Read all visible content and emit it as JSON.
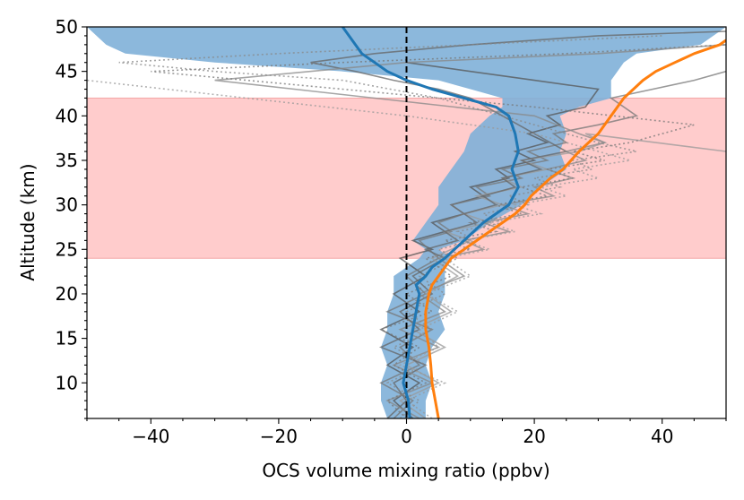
{
  "chart_data": {
    "type": "line",
    "title": "",
    "xlabel": "OCS volume mixing ratio (ppbv)",
    "ylabel": "Altitude (km)",
    "xlim": [
      -50,
      50
    ],
    "ylim": [
      6,
      50
    ],
    "xticks": [
      -40,
      -20,
      0,
      20,
      40
    ],
    "xtick_labels": [
      "−40",
      "−20",
      "0",
      "20",
      "40"
    ],
    "yticks": [
      10,
      15,
      20,
      25,
      30,
      35,
      40,
      45,
      50
    ],
    "ytick_labels": [
      "10",
      "15",
      "20",
      "25",
      "30",
      "35",
      "40",
      "45",
      "50"
    ],
    "shaded_altitude_band": {
      "y_from": 24,
      "y_to": 42,
      "color": "#ffcccc"
    },
    "zero_reference_line": {
      "x": 0,
      "style": "dashed",
      "color": "#000000"
    },
    "blue_envelope": {
      "color": "#7fb0d8",
      "x_low": [
        -3,
        -4,
        -4,
        -3,
        -4,
        -3,
        -3,
        -2,
        -2,
        0,
        2,
        3,
        1,
        3,
        5,
        5,
        7,
        9,
        10,
        13,
        15,
        15,
        10,
        5,
        -10,
        -30,
        -44,
        -47,
        -50
      ],
      "x_high": [
        3,
        3,
        4,
        3,
        4,
        6,
        5,
        6,
        6,
        6,
        7,
        5,
        9,
        13,
        18,
        21,
        25,
        24,
        25,
        24,
        27,
        32,
        32,
        32,
        33,
        34,
        36,
        46,
        50
      ],
      "y": [
        6,
        8,
        10,
        12,
        14,
        16,
        18,
        20,
        22,
        23,
        24,
        25,
        26,
        28,
        30,
        32,
        34,
        36,
        38,
        40,
        41,
        42,
        43,
        44,
        45,
        46,
        47,
        48,
        50
      ]
    },
    "series": [
      {
        "name": "blue mean profile",
        "color": "#1f77b4",
        "x": [
          0.5,
          0.3,
          -0.5,
          0,
          0.5,
          1,
          1.5,
          2,
          1.5,
          3,
          4,
          6,
          9,
          12,
          16,
          17.5,
          16.5,
          17.5,
          17,
          16,
          14,
          9,
          4,
          0,
          -3,
          -5,
          -7,
          -10
        ],
        "y": [
          6,
          8,
          10,
          12,
          14,
          16,
          18,
          20,
          21,
          22,
          23,
          24,
          26,
          28,
          30,
          32,
          34,
          36,
          38,
          40,
          41,
          42,
          43,
          44,
          45,
          46,
          47,
          50
        ]
      },
      {
        "name": "orange profile",
        "color": "#ff7f0e",
        "x": [
          5,
          4.5,
          4,
          3.8,
          3.5,
          3,
          3,
          3.5,
          4,
          5,
          6,
          7,
          9,
          11,
          13,
          15,
          17,
          18.5,
          19.5,
          21,
          22.5,
          24.5,
          27,
          30,
          32,
          34,
          37,
          39,
          42,
          45,
          49,
          50
        ],
        "y": [
          6,
          8,
          10,
          12,
          14,
          16,
          18,
          20,
          21,
          22,
          23,
          24,
          25,
          26,
          27,
          28,
          29,
          30,
          31,
          32,
          33,
          34,
          36,
          38,
          40,
          42,
          44,
          45,
          46,
          47,
          48,
          48.5
        ]
      }
    ],
    "gray_profiles": [
      {
        "style": "solid",
        "color": "#555555",
        "x": [
          1,
          -2,
          2,
          -3,
          1,
          -4,
          2,
          -2,
          3,
          -1,
          4,
          1,
          6,
          4,
          9,
          7,
          12,
          10,
          16,
          14,
          20,
          17,
          22,
          19,
          24,
          22,
          28,
          30,
          20,
          10,
          0
        ],
        "y": [
          6,
          8,
          10,
          12,
          14,
          16,
          18,
          20,
          22,
          24,
          25,
          26,
          27,
          28,
          29,
          30,
          31,
          32,
          33,
          34,
          35,
          36,
          37,
          38,
          39,
          40,
          41,
          43,
          44,
          45,
          46
        ]
      },
      {
        "style": "solid",
        "color": "#777777",
        "x": [
          -2,
          1,
          -4,
          2,
          -1,
          4,
          -3,
          3,
          0,
          5,
          2,
          7,
          5,
          9,
          7,
          13,
          11,
          18,
          15,
          22,
          19,
          25,
          23,
          30,
          36,
          32,
          45,
          50
        ],
        "y": [
          6,
          8,
          10,
          12,
          14,
          16,
          18,
          20,
          22,
          24,
          26,
          27,
          28,
          29,
          30,
          31,
          32,
          33,
          34,
          35,
          36,
          37,
          38,
          39,
          40,
          42,
          44,
          45
        ]
      },
      {
        "style": "solid",
        "color": "#999999",
        "x": [
          3,
          -1,
          5,
          0,
          6,
          1,
          7,
          3,
          8,
          4,
          10,
          6,
          13,
          9,
          15,
          11,
          18,
          15,
          22,
          18,
          27,
          31,
          28,
          50
        ],
        "y": [
          6,
          8,
          10,
          12,
          14,
          16,
          18,
          20,
          22,
          24,
          26,
          27,
          28,
          29,
          30,
          31,
          32,
          33,
          34,
          35,
          36,
          37,
          38,
          36
        ]
      },
      {
        "style": "solid",
        "color": "#666666",
        "x": [
          -3,
          0,
          -2,
          3,
          -4,
          2,
          -1,
          4,
          1,
          6,
          3,
          8,
          6,
          11,
          9,
          14,
          12,
          17,
          15,
          21,
          18,
          25,
          20,
          15,
          10,
          5,
          -2,
          -8,
          -15,
          -5,
          10,
          30,
          50
        ],
        "y": [
          6,
          8,
          10,
          12,
          14,
          16,
          18,
          20,
          22,
          24,
          25,
          26,
          27,
          28,
          29,
          30,
          31,
          32,
          33,
          34,
          35,
          36,
          38,
          40,
          42,
          43,
          44,
          45,
          46,
          47,
          48,
          49,
          49.5
        ]
      },
      {
        "style": "solid",
        "color": "#888888",
        "x": [
          2,
          -3,
          4,
          -2,
          5,
          -1,
          6,
          2,
          9,
          5,
          12,
          9,
          16,
          12,
          19,
          15,
          23,
          20,
          26,
          22,
          28,
          25,
          31,
          27,
          20,
          -5,
          -30,
          0,
          30,
          50
        ],
        "y": [
          6,
          8,
          10,
          12,
          14,
          16,
          18,
          20,
          22,
          24,
          25,
          26,
          27,
          28,
          29,
          30,
          31,
          32,
          33,
          34,
          35,
          36,
          37,
          38,
          40,
          42,
          44,
          46,
          47,
          48
        ]
      },
      {
        "style": "dotted",
        "color": "#888888",
        "x": [
          -1,
          2,
          -3,
          3,
          -2,
          4,
          0,
          6,
          2,
          8,
          5,
          11,
          8,
          15,
          12,
          19,
          16,
          24,
          20,
          29,
          26,
          36,
          30,
          25,
          15,
          5,
          -10,
          -30,
          -45,
          -20,
          10,
          40
        ],
        "y": [
          6,
          8,
          10,
          12,
          14,
          16,
          18,
          20,
          22,
          24,
          25,
          26,
          27,
          28,
          29,
          30,
          31,
          32,
          33,
          34,
          35,
          36,
          37,
          38,
          40,
          42,
          44,
          45,
          46,
          47,
          48,
          49
        ]
      },
      {
        "style": "dotted",
        "color": "#999999",
        "x": [
          4,
          0,
          6,
          -1,
          5,
          2,
          8,
          3,
          10,
          6,
          13,
          9,
          17,
          13,
          21,
          17,
          25,
          21,
          30,
          26,
          35,
          30,
          20,
          0,
          -25,
          -50
        ],
        "y": [
          6,
          8,
          10,
          12,
          14,
          16,
          18,
          20,
          22,
          24,
          25,
          26,
          27,
          28,
          29,
          30,
          31,
          32,
          33,
          34,
          35,
          36,
          38,
          40,
          42,
          44
        ]
      },
      {
        "style": "dotted",
        "color": "#777777",
        "x": [
          0,
          -3,
          3,
          -2,
          2,
          -4,
          4,
          0,
          7,
          3,
          10,
          6,
          14,
          10,
          18,
          14,
          22,
          18,
          26,
          22,
          31,
          26,
          35,
          45,
          20,
          -10,
          -40,
          -10,
          25,
          50
        ],
        "y": [
          6,
          8,
          10,
          12,
          14,
          16,
          18,
          20,
          22,
          24,
          25,
          26,
          27,
          28,
          29,
          30,
          31,
          32,
          33,
          34,
          35,
          36,
          37,
          39,
          41,
          43,
          45,
          46,
          47,
          48
        ]
      }
    ]
  }
}
